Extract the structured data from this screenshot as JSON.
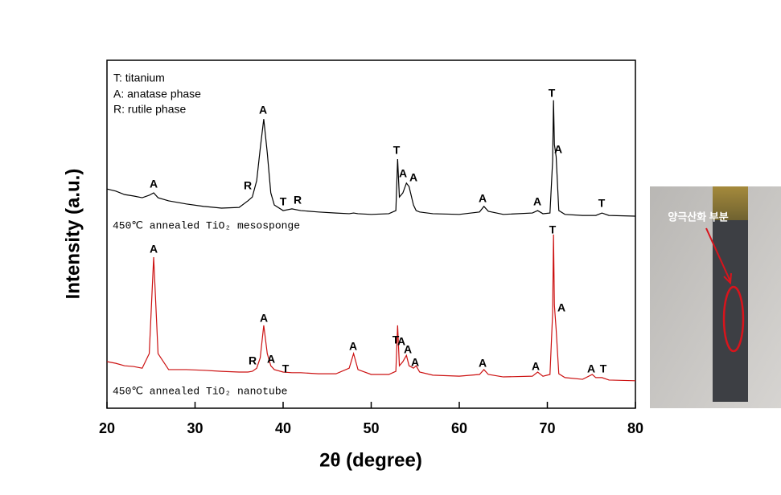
{
  "chart_data": {
    "type": "line",
    "x_label": "2θ (degree)",
    "y_label": "Intensity (a.u.)",
    "legend_notes": [
      "T: titanium",
      "A: anatase phase",
      "R: rutile phase"
    ],
    "xlim": [
      20,
      80
    ],
    "xticks": [
      20,
      30,
      40,
      50,
      60,
      70,
      80
    ],
    "ylim": [
      0,
      100
    ],
    "x": [
      20,
      21,
      22,
      23,
      24,
      24.8,
      25.3,
      25.8,
      27,
      29,
      31,
      33,
      35,
      36,
      36.5,
      37,
      37.4,
      37.8,
      38.2,
      38.6,
      39,
      40,
      41,
      42,
      44,
      46,
      47.5,
      48,
      48.5,
      50,
      52,
      52.8,
      53,
      53.2,
      53.6,
      54,
      54.3,
      54.8,
      55.1,
      55.5,
      57,
      60,
      62.3,
      62.8,
      63.3,
      65,
      68.3,
      68.9,
      69.5,
      70.3,
      70.6,
      70.7,
      70.8,
      71,
      71.3,
      72,
      74,
      75.1,
      75.5,
      76.2,
      77,
      80
    ],
    "series": [
      {
        "name": "450℃ annealed TiO₂ mesosponge",
        "color": "#000000",
        "values": [
          63.0,
          62.4,
          61.4,
          61.0,
          60.5,
          61.2,
          61.9,
          60.5,
          59.6,
          58.7,
          58.0,
          57.5,
          57.7,
          59.6,
          60.7,
          65.4,
          74.6,
          83.1,
          73.4,
          61.9,
          58.4,
          56.8,
          57.3,
          56.8,
          56.4,
          56.1,
          55.9,
          56.1,
          55.9,
          55.7,
          55.9,
          56.8,
          71.6,
          60.7,
          61.9,
          64.7,
          63.7,
          58.4,
          56.8,
          56.4,
          55.9,
          55.7,
          56.4,
          58.0,
          56.6,
          55.7,
          56.1,
          56.8,
          55.9,
          56.1,
          71.1,
          88.5,
          75.8,
          72.3,
          56.8,
          55.7,
          55.4,
          55.4,
          55.4,
          56.1,
          55.4,
          55.2
        ],
        "peak_labels": [
          "A",
          "R",
          "A",
          "T",
          "R",
          "T",
          "A",
          "A",
          "A",
          "A",
          "T",
          "A",
          "T"
        ]
      },
      {
        "name": "450℃ annealed TiO₂ nanotube",
        "color": "#cc1111",
        "values": [
          13.4,
          12.9,
          12.2,
          12.0,
          11.5,
          15.7,
          43.4,
          15.7,
          11.1,
          11.1,
          10.9,
          10.6,
          10.4,
          10.4,
          10.6,
          11.5,
          14.5,
          23.8,
          15.7,
          12.2,
          11.1,
          10.4,
          10.2,
          10.2,
          9.9,
          9.9,
          11.5,
          15.7,
          11.1,
          9.7,
          9.7,
          10.6,
          23.8,
          12.2,
          13.4,
          15.2,
          12.2,
          11.5,
          12.2,
          10.4,
          9.5,
          9.2,
          9.7,
          11.1,
          9.7,
          9.0,
          9.2,
          10.4,
          9.2,
          9.7,
          27.3,
          49.9,
          29.6,
          22.6,
          9.9,
          8.8,
          8.3,
          9.7,
          8.8,
          8.8,
          8.1,
          7.9
        ],
        "peak_labels": [
          "A",
          "R",
          "A",
          "A",
          "T",
          "A",
          "T",
          "A",
          "A",
          "A",
          "A",
          "A",
          "T",
          "A",
          "A",
          "T"
        ]
      }
    ]
  },
  "photo": {
    "label": "양극산화 부분"
  }
}
